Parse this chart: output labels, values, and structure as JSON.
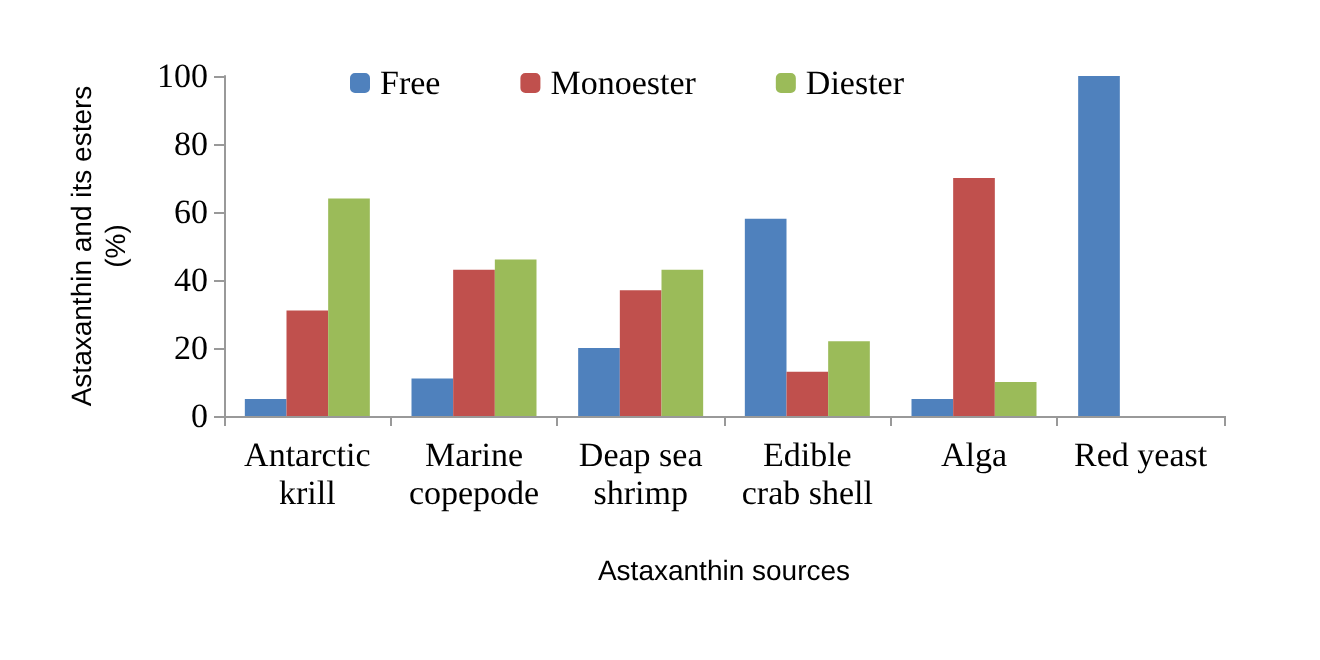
{
  "chart_data": {
    "type": "bar",
    "xlabel": "Astaxanthin sources",
    "ylabel": "Astaxanthin and its esters\n(%)",
    "categories": [
      "Antarctic\nkrill",
      "Marine\ncopepode",
      "Deap sea\nshrimp",
      "Edible\ncrab shell",
      "Alga",
      "Red yeast"
    ],
    "series": [
      {
        "name": "Free",
        "color": "#4f81bd",
        "values": [
          5,
          11,
          20,
          58,
          5,
          100
        ]
      },
      {
        "name": "Monoester",
        "color": "#c0504d",
        "values": [
          31,
          43,
          37,
          13,
          70,
          0
        ]
      },
      {
        "name": "Diester",
        "color": "#9bbb59",
        "values": [
          64,
          46,
          43,
          22,
          10,
          0
        ]
      }
    ],
    "ylim": [
      0,
      100
    ],
    "yticks": [
      0,
      20,
      40,
      60,
      80,
      100
    ],
    "grid": false,
    "legend": "top"
  }
}
